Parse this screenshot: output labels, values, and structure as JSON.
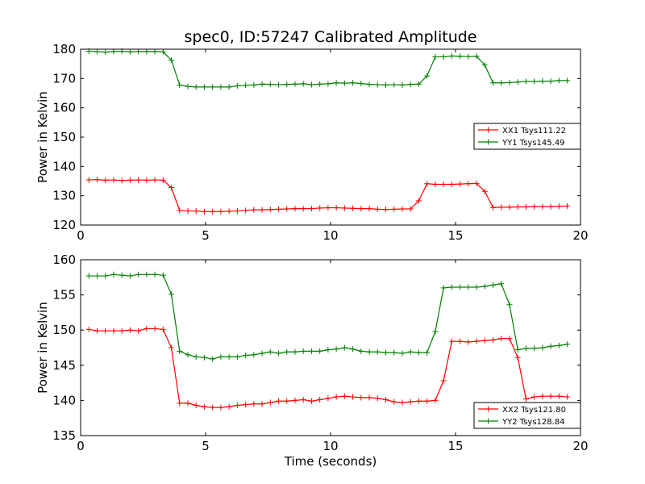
{
  "figure": {
    "title": "spec0, ID:57247 Calibrated Amplitude"
  },
  "chart_data": [
    {
      "type": "line",
      "title": "spec0, ID:57247 Calibrated Amplitude",
      "xlabel": "",
      "ylabel": "Power in Kelvin",
      "xlim": [
        0,
        20
      ],
      "ylim": [
        120,
        180
      ],
      "xticks": [
        "0",
        "5",
        "10",
        "15",
        "20"
      ],
      "yticks": [
        "120",
        "130",
        "140",
        "150",
        "160",
        "170",
        "180"
      ],
      "grid": false,
      "legend": "center-right",
      "x": [
        0.33,
        0.66,
        0.99,
        1.32,
        1.65,
        1.98,
        2.31,
        2.64,
        2.97,
        3.3,
        3.63,
        3.96,
        4.29,
        4.62,
        4.95,
        5.28,
        5.61,
        5.94,
        6.27,
        6.6,
        6.93,
        7.26,
        7.59,
        7.92,
        8.25,
        8.58,
        8.91,
        9.24,
        9.57,
        9.9,
        10.23,
        10.56,
        10.89,
        11.22,
        11.55,
        11.88,
        12.21,
        12.54,
        12.87,
        13.2,
        13.53,
        13.86,
        14.19,
        14.52,
        14.85,
        15.18,
        15.51,
        15.84,
        16.17,
        16.5,
        16.83,
        17.16,
        17.49,
        17.82,
        18.15,
        18.48,
        18.81,
        19.14,
        19.47
      ],
      "series": [
        {
          "name": "XX1 Tsys111.22",
          "color": "#ff0000",
          "values": [
            135.4,
            135.5,
            135.3,
            135.4,
            135.2,
            135.3,
            135.4,
            135.3,
            135.4,
            135.3,
            132.8,
            125.0,
            124.8,
            124.8,
            124.6,
            124.6,
            124.6,
            124.7,
            124.8,
            125.0,
            125.2,
            125.2,
            125.3,
            125.4,
            125.5,
            125.6,
            125.6,
            125.6,
            125.8,
            125.9,
            125.9,
            125.8,
            125.7,
            125.6,
            125.6,
            125.4,
            125.3,
            125.4,
            125.5,
            125.5,
            128.3,
            134.1,
            133.9,
            133.9,
            133.9,
            134.0,
            134.1,
            134.2,
            131.5,
            126.0,
            126.1,
            126.1,
            126.2,
            126.2,
            126.3,
            126.3,
            126.3,
            126.4,
            126.5
          ]
        },
        {
          "name": "YY1 Tsys145.49",
          "color": "#008000",
          "values": [
            179.3,
            179.2,
            179.0,
            179.2,
            179.3,
            179.1,
            179.2,
            179.2,
            179.2,
            179.1,
            176.3,
            167.8,
            167.3,
            167.1,
            167.1,
            167.1,
            167.1,
            167.1,
            167.5,
            167.7,
            167.8,
            168.1,
            168.0,
            167.9,
            168.0,
            168.1,
            168.2,
            167.9,
            168.1,
            168.2,
            168.5,
            168.4,
            168.5,
            168.3,
            168.0,
            167.9,
            167.8,
            167.9,
            167.8,
            168.0,
            168.1,
            170.9,
            177.4,
            177.4,
            177.7,
            177.6,
            177.5,
            177.6,
            174.6,
            168.5,
            168.5,
            168.6,
            168.8,
            169.0,
            169.0,
            169.1,
            169.1,
            169.3,
            169.3
          ]
        }
      ]
    },
    {
      "type": "line",
      "title": "",
      "xlabel": "Time (seconds)",
      "ylabel": "Power in Kelvin",
      "xlim": [
        0,
        20
      ],
      "ylim": [
        135,
        160
      ],
      "xticks": [
        "0",
        "5",
        "10",
        "15",
        "20"
      ],
      "yticks": [
        "135",
        "140",
        "145",
        "150",
        "155",
        "160"
      ],
      "grid": false,
      "legend": "lower-right",
      "x": [
        0.33,
        0.66,
        0.99,
        1.32,
        1.65,
        1.98,
        2.31,
        2.64,
        2.97,
        3.3,
        3.63,
        3.96,
        4.29,
        4.62,
        4.95,
        5.28,
        5.61,
        5.94,
        6.27,
        6.6,
        6.93,
        7.26,
        7.59,
        7.92,
        8.25,
        8.58,
        8.91,
        9.24,
        9.57,
        9.9,
        10.23,
        10.56,
        10.89,
        11.22,
        11.55,
        11.88,
        12.21,
        12.54,
        12.87,
        13.2,
        13.53,
        13.86,
        14.19,
        14.52,
        14.85,
        15.18,
        15.51,
        15.84,
        16.17,
        16.5,
        16.83,
        17.16,
        17.49,
        17.82,
        18.15,
        18.48,
        18.81,
        19.14,
        19.47
      ],
      "series": [
        {
          "name": "XX2 Tsys121.80",
          "color": "#ff0000",
          "values": [
            150.1,
            149.9,
            149.9,
            149.9,
            149.9,
            150.0,
            149.9,
            150.2,
            150.2,
            150.1,
            147.5,
            139.6,
            139.6,
            139.3,
            139.1,
            139.0,
            139.0,
            139.1,
            139.3,
            139.4,
            139.5,
            139.5,
            139.7,
            139.9,
            139.9,
            140.0,
            140.1,
            139.9,
            140.1,
            140.3,
            140.5,
            140.6,
            140.5,
            140.4,
            140.4,
            140.3,
            140.1,
            139.8,
            139.7,
            139.8,
            139.9,
            139.9,
            140.0,
            142.8,
            148.4,
            148.4,
            148.3,
            148.4,
            148.5,
            148.6,
            148.8,
            148.8,
            146.1,
            140.2,
            140.5,
            140.6,
            140.6,
            140.6,
            140.5
          ]
        },
        {
          "name": "YY2 Tsys128.84",
          "color": "#008000",
          "values": [
            157.7,
            157.7,
            157.7,
            157.9,
            157.8,
            157.7,
            157.9,
            157.9,
            157.9,
            157.8,
            155.1,
            147.0,
            146.5,
            146.2,
            146.1,
            145.9,
            146.2,
            146.2,
            146.2,
            146.4,
            146.5,
            146.7,
            146.9,
            146.7,
            146.9,
            146.9,
            147.0,
            147.0,
            147.0,
            147.2,
            147.3,
            147.5,
            147.3,
            147.0,
            146.9,
            146.9,
            146.8,
            146.8,
            146.7,
            146.9,
            146.8,
            146.8,
            149.8,
            156.0,
            156.1,
            156.1,
            156.1,
            156.1,
            156.2,
            156.4,
            156.6,
            153.6,
            147.2,
            147.4,
            147.4,
            147.5,
            147.7,
            147.8,
            148.0
          ]
        }
      ]
    }
  ]
}
